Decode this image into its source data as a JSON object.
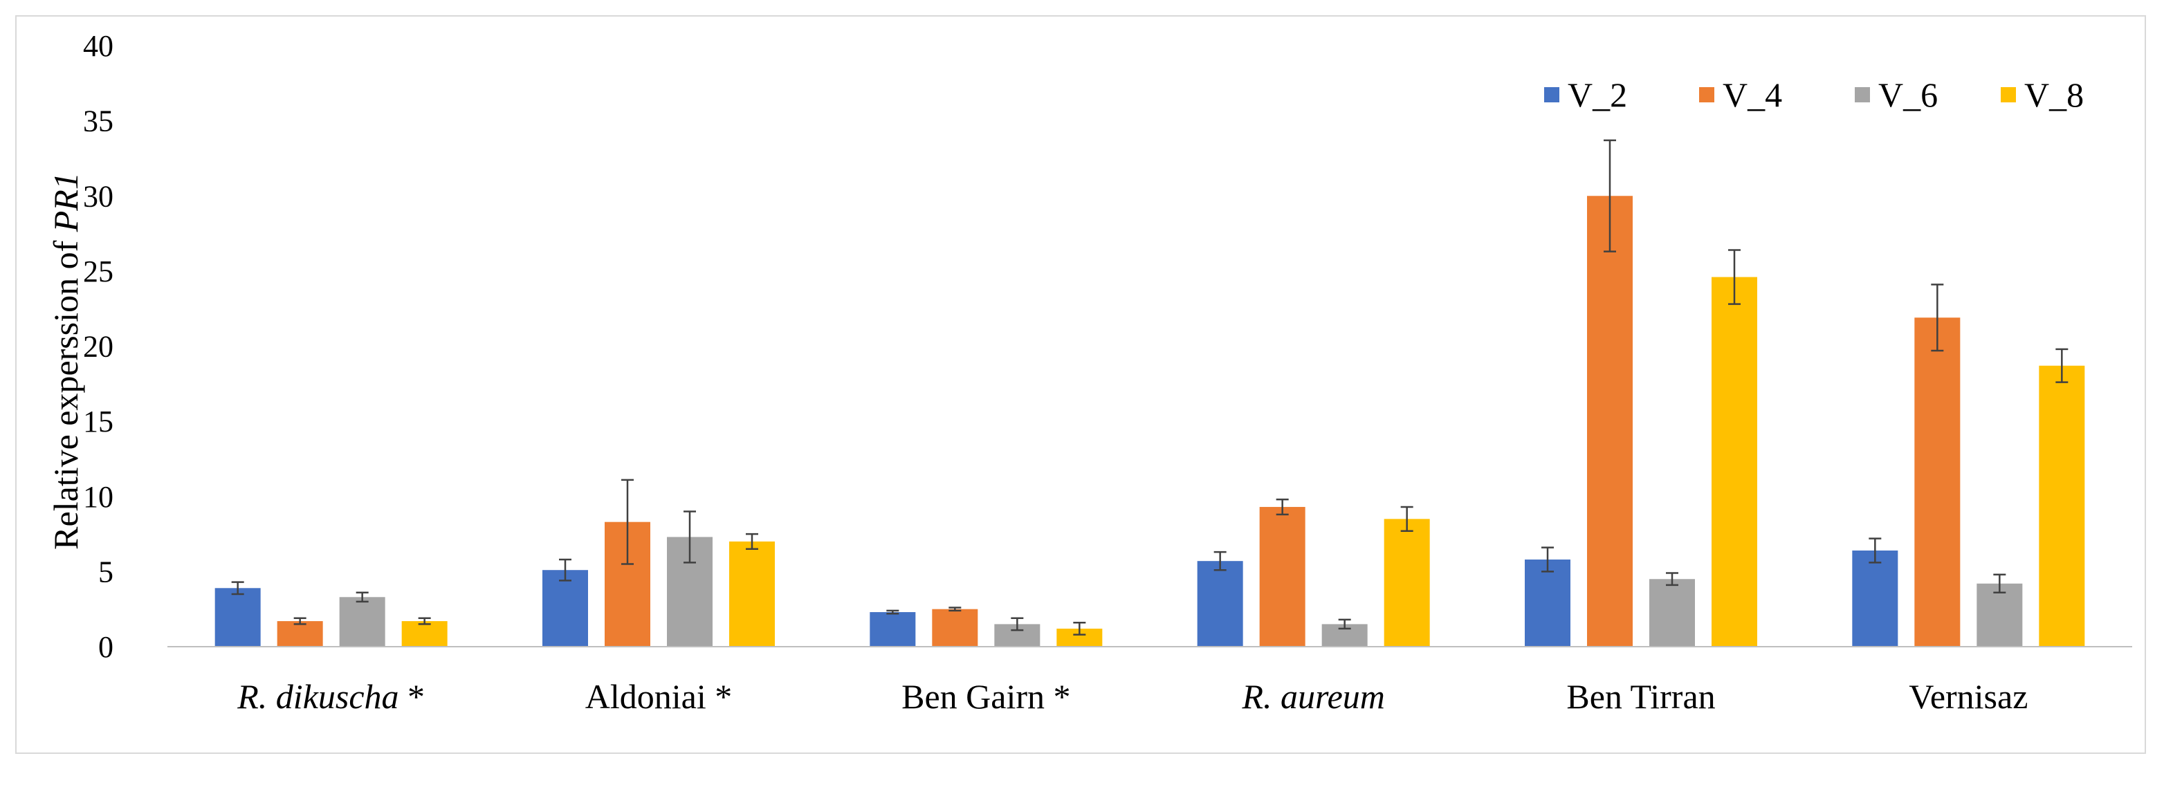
{
  "colors": {
    "V_2": "#4472c4",
    "V_4": "#ed7d31",
    "V_6": "#a5a5a5",
    "V_8": "#ffc000",
    "grid": "#d9d9d9",
    "axis": "#bfbfbf",
    "errorbar": "#404040"
  },
  "chart_data": {
    "type": "bar",
    "title": "",
    "xlabel": "",
    "ylabel": "Relative experssion of ",
    "ylabel_gene": "PR1",
    "ylim": [
      0,
      40
    ],
    "yticks": [
      0,
      5,
      10,
      15,
      20,
      25,
      30,
      35,
      40
    ],
    "grid": false,
    "legend_position": "top-right",
    "categories": [
      {
        "name": "R. dikuscha",
        "italic": true,
        "suffix": " *"
      },
      {
        "name": "Aldoniai",
        "italic": false,
        "suffix": " *"
      },
      {
        "name": "Ben Gairn",
        "italic": false,
        "suffix": " *"
      },
      {
        "name": "R. aureum",
        "italic": true,
        "suffix": ""
      },
      {
        "name": "Ben Tirran",
        "italic": false,
        "suffix": ""
      },
      {
        "name": "Vernisaz",
        "italic": false,
        "suffix": ""
      }
    ],
    "series": [
      {
        "name": "V_2",
        "values": [
          3.9,
          5.1,
          2.3,
          5.7,
          5.8,
          6.4
        ],
        "errors": [
          0.4,
          0.7,
          0.1,
          0.6,
          0.8,
          0.8
        ]
      },
      {
        "name": "V_4",
        "values": [
          1.7,
          8.3,
          2.5,
          9.3,
          30.0,
          21.9
        ],
        "errors": [
          0.2,
          2.8,
          0.1,
          0.5,
          3.7,
          2.2
        ]
      },
      {
        "name": "V_6",
        "values": [
          3.3,
          7.3,
          1.5,
          1.5,
          4.5,
          4.2
        ],
        "errors": [
          0.3,
          1.7,
          0.4,
          0.3,
          0.4,
          0.6
        ]
      },
      {
        "name": "V_8",
        "values": [
          1.7,
          7.0,
          1.2,
          8.5,
          24.6,
          18.7
        ],
        "errors": [
          0.2,
          0.5,
          0.4,
          0.8,
          1.8,
          1.1
        ]
      }
    ]
  }
}
